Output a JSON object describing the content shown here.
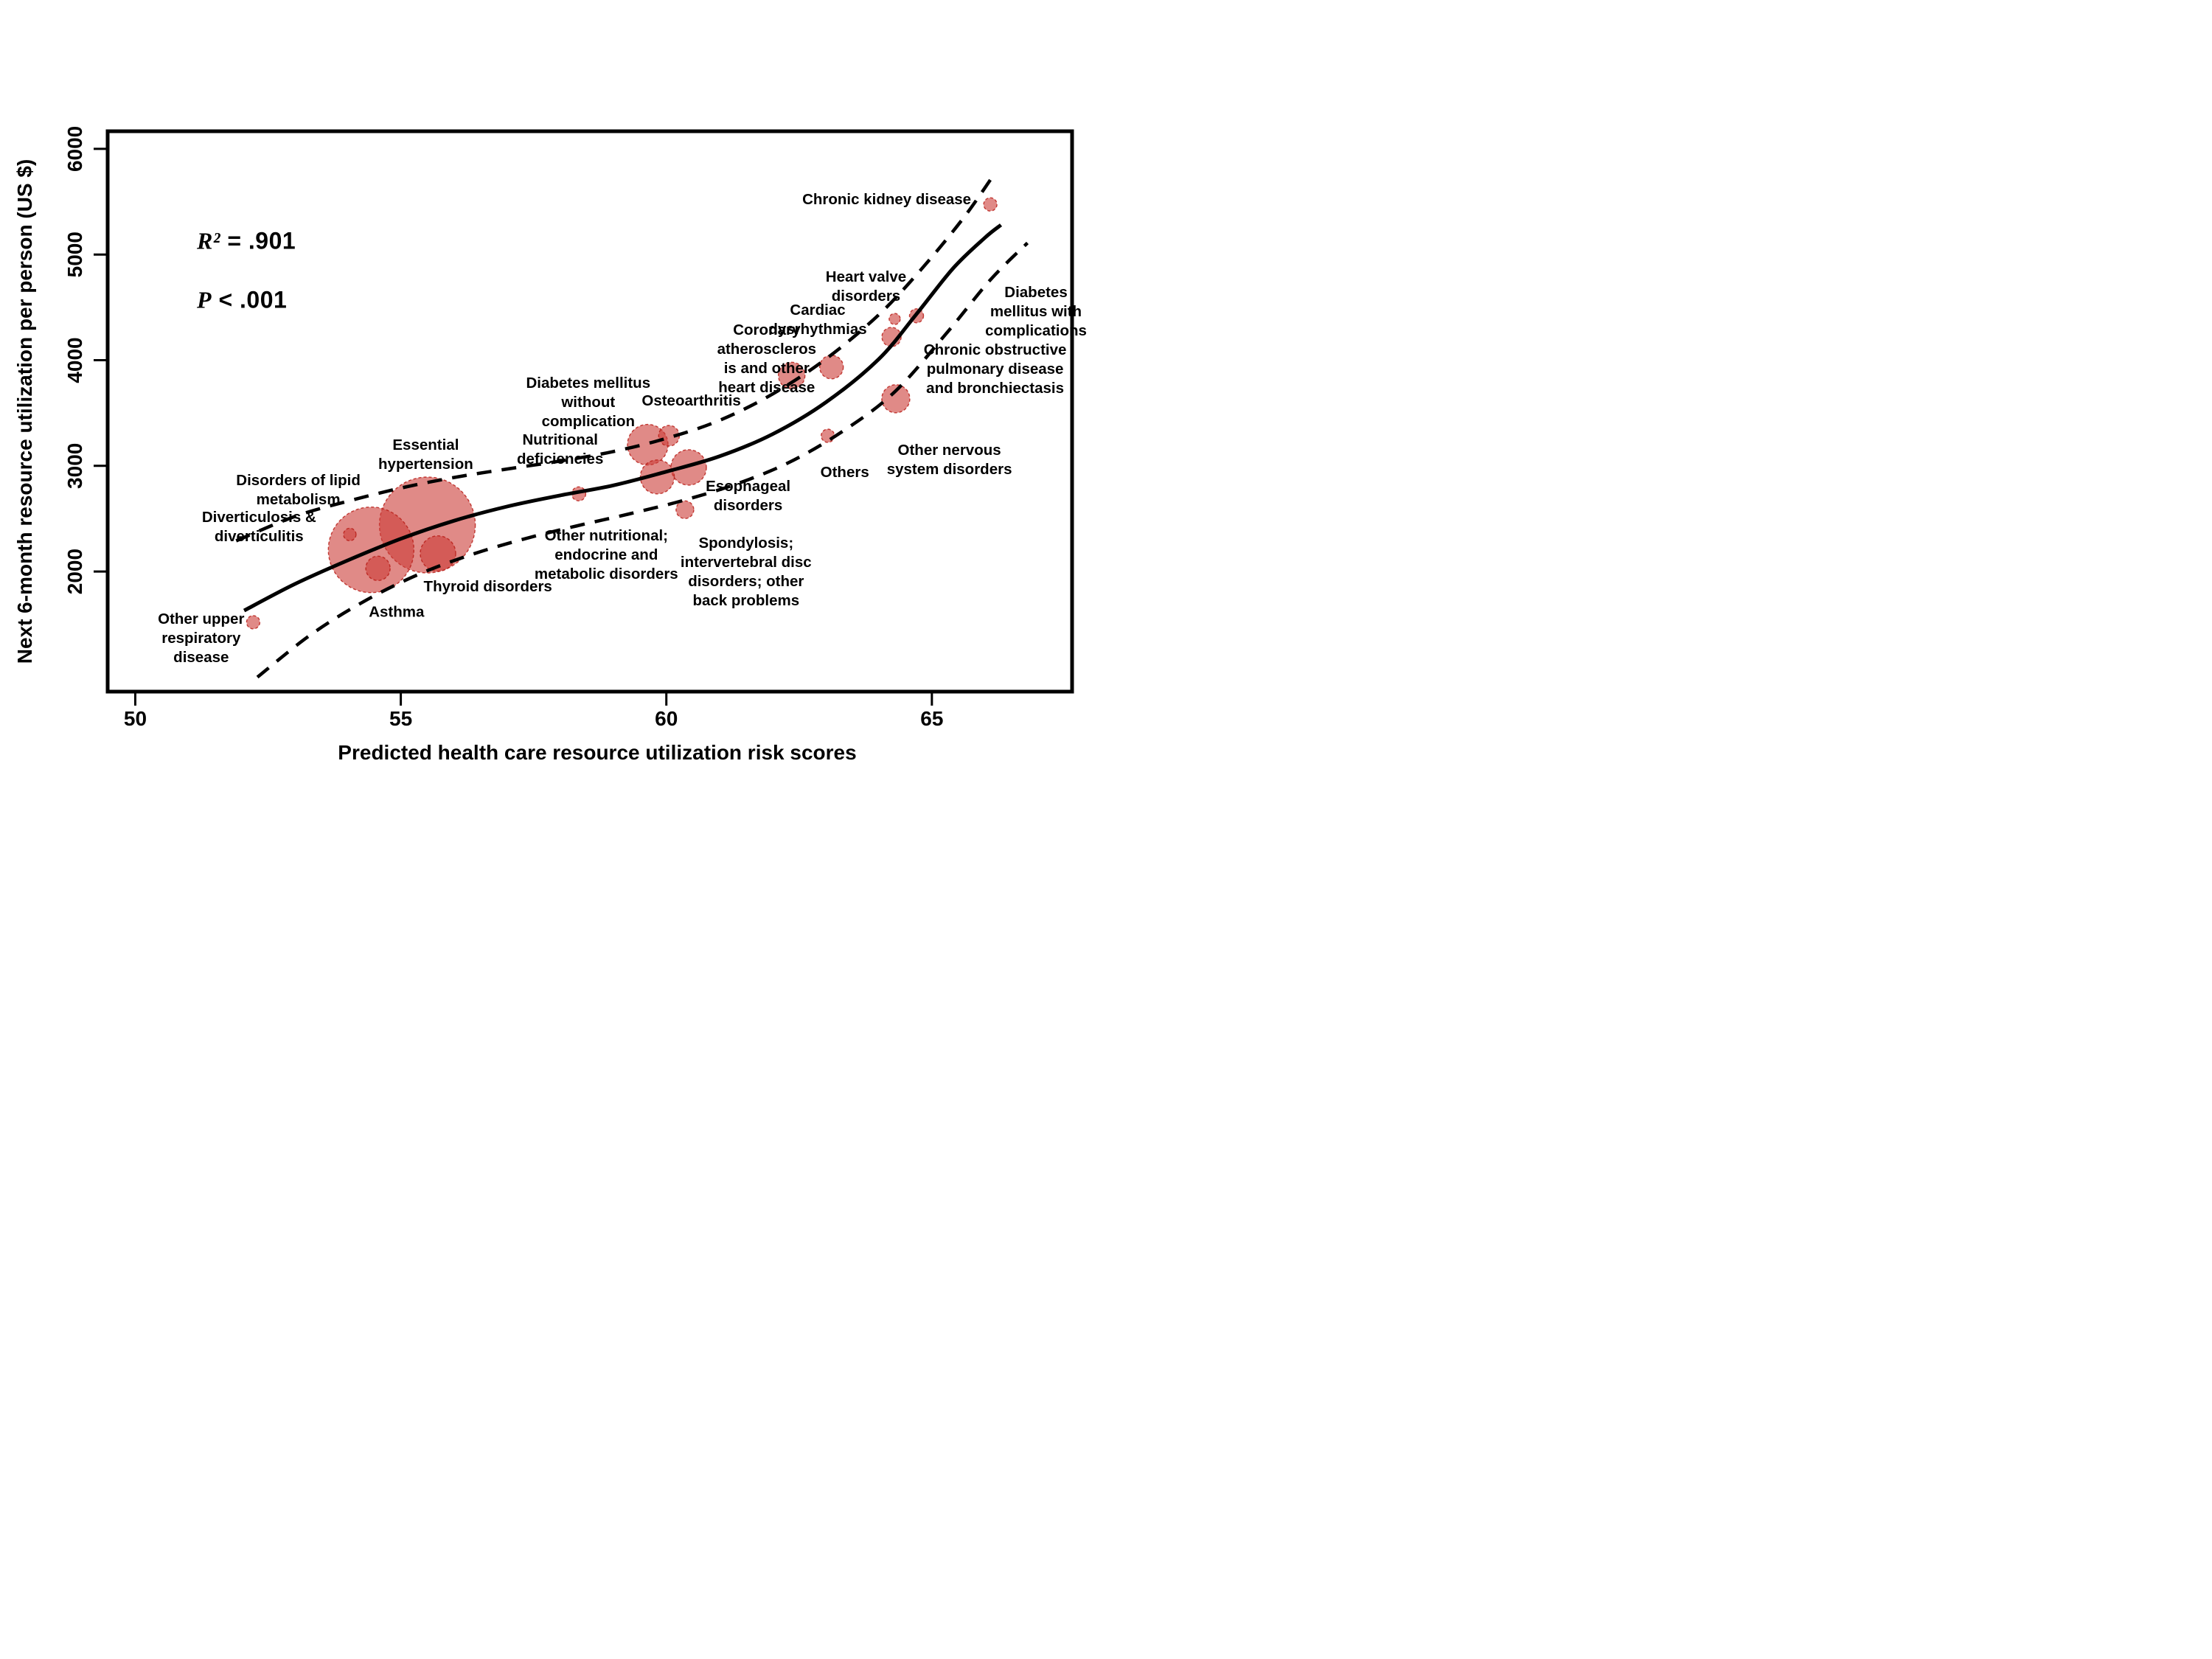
{
  "figure": {
    "annotations": {
      "r2": {
        "symbol": "R²",
        "value": "= .901"
      },
      "p": {
        "symbol": "P",
        "value": "< .001"
      }
    },
    "colors": {
      "bubble_fill": "rgba(204,60,55,0.6)",
      "bubble_stroke": "rgba(185,30,25,0.85)",
      "line": "#000000",
      "text": "#000000"
    }
  },
  "chart_data": {
    "type": "scatter",
    "title": "",
    "xlabel": "Predicted health care resource utilization risk scores",
    "ylabel": "Next 6-month resource utilization per person (US $)",
    "xlim": [
      49.48,
      67.64
    ],
    "ylim": [
      863,
      6167
    ],
    "x_ticks": [
      50,
      55,
      60,
      65
    ],
    "y_ticks": [
      2000,
      3000,
      4000,
      5000,
      6000
    ],
    "grid": false,
    "legend": "none",
    "regression_note": "bubble area reflects category size; solid line = fitted regression, dashed lines = confidence band",
    "series": [
      {
        "name": "Disease categories",
        "points": [
          {
            "name": "Other upper respiratory disease",
            "x": 52.22,
            "y": 1520,
            "r": 9,
            "label": {
              "lines": [
                "Other upper",
                "respiratory",
                "disease"
              ],
              "lx": 51.24,
              "ly": 1553
            }
          },
          {
            "name": "Diverticulosis & diverticulitis",
            "x": 54.04,
            "y": 2350,
            "r": 8.5,
            "label": {
              "lines": [
                "Diverticulosis &",
                "diverticulitis"
              ],
              "lx": 52.33,
              "ly": 2517
            }
          },
          {
            "name": "Disorders of lipid metabolism",
            "x": 54.44,
            "y": 2205,
            "r": 58,
            "label": {
              "lines": [
                "Disorders of lipid",
                "metabolism"
              ],
              "lx": 53.07,
              "ly": 2866
            }
          },
          {
            "name": "Essential hypertension",
            "x": 55.5,
            "y": 2440,
            "r": 65,
            "label": {
              "lines": [
                "Essential",
                "hypertension"
              ],
              "lx": 55.47,
              "ly": 3201
            }
          },
          {
            "name": "Asthma",
            "x": 54.57,
            "y": 2030,
            "r": 16.5,
            "label": {
              "lines": [
                "Asthma"
              ],
              "lx": 54.92,
              "ly": 1620
            }
          },
          {
            "name": "Thyroid disorders",
            "x": 55.7,
            "y": 2170,
            "r": 24,
            "label": {
              "lines": [
                "Thyroid disorders"
              ],
              "lx": 56.64,
              "ly": 1860
            }
          },
          {
            "name": "Nutritional deficiencies",
            "x": 58.35,
            "y": 2735,
            "r": 9.5,
            "label": {
              "lines": [
                "Nutritional",
                "deficiencies"
              ],
              "lx": 58.0,
              "ly": 3250
            }
          },
          {
            "name": "Diabetes mellitus without complication",
            "x": 59.65,
            "y": 3200,
            "r": 27.5,
            "label": {
              "lines": [
                "Diabetes mellitus",
                "without",
                "complication"
              ],
              "lx": 58.53,
              "ly": 3787
            }
          },
          {
            "name": "Osteoarthritis",
            "x": 60.05,
            "y": 3285,
            "r": 14,
            "label": {
              "lines": [
                "Osteoarthritis"
              ],
              "lx": 60.47,
              "ly": 3620
            }
          },
          {
            "name": "Other nutritional; endocrine and metabolic disorders",
            "x": 59.83,
            "y": 2895,
            "r": 23,
            "label": {
              "lines": [
                "Other nutritional;",
                "endocrine and",
                "metabolic disorders"
              ],
              "lx": 58.87,
              "ly": 2342
            }
          },
          {
            "name": "Esophageal disorders",
            "x": 60.42,
            "y": 2985,
            "r": 24,
            "label": {
              "lines": [
                "Esophageal",
                "disorders"
              ],
              "lx": 61.54,
              "ly": 2810
            }
          },
          {
            "name": "Spondylosis; intervertebral disc disorders; other back problems",
            "x": 60.35,
            "y": 2585,
            "r": 12,
            "label": {
              "lines": [
                "Spondylosis;",
                "intervertebral disc",
                "disorders; other",
                "back problems"
              ],
              "lx": 61.5,
              "ly": 2272
            }
          },
          {
            "name": "Others",
            "x": 63.04,
            "y": 3285,
            "r": 9,
            "label": {
              "lines": [
                "Others"
              ],
              "lx": 63.36,
              "ly": 2942
            }
          },
          {
            "name": "Coronary atherosclerosis and other heart disease",
            "x": 62.36,
            "y": 3855,
            "r": 18,
            "label": {
              "lines": [
                "Coronary",
                "atheroscleros",
                "is and other",
                "heart disease"
              ],
              "lx": 61.89,
              "ly": 4290
            }
          },
          {
            "name": "Cardiac dysrhythmias",
            "x": 63.11,
            "y": 3935,
            "r": 16,
            "label": {
              "lines": [
                "Cardiac",
                "dysrhythmias"
              ],
              "lx": 62.85,
              "ly": 4478
            }
          },
          {
            "name": "Heart valve disorders",
            "x": 64.3,
            "y": 4390,
            "r": 7.5,
            "label": {
              "lines": [
                "Heart valve",
                "disorders"
              ],
              "lx": 63.76,
              "ly": 4792
            }
          },
          {
            "name": "Diabetes mellitus with complications",
            "x": 64.71,
            "y": 4420,
            "r": 9.5,
            "label": {
              "lines": [
                "Diabetes",
                "mellitus with",
                "complications"
              ],
              "lx": 66.96,
              "ly": 4646
            }
          },
          {
            "name": "Chronic obstructive pulmonary disease and bronchiectasis",
            "x": 64.24,
            "y": 4220,
            "r": 13,
            "label": {
              "lines": [
                "Chronic obstructive",
                "pulmonary disease",
                "and bronchiectasis"
              ],
              "lx": 66.19,
              "ly": 4101
            }
          },
          {
            "name": "Other nervous system disorders",
            "x": 64.32,
            "y": 3635,
            "r": 19,
            "label": {
              "lines": [
                "Other nervous",
                "system disorders"
              ],
              "lx": 65.33,
              "ly": 3152
            }
          },
          {
            "name": "Chronic kidney disease",
            "x": 66.1,
            "y": 5475,
            "r": 9,
            "label": {
              "lines": [
                "Chronic kidney disease"
              ],
              "lx": 64.15,
              "ly": 5525
            }
          }
        ]
      }
    ],
    "regression": {
      "solid": [
        [
          52.05,
          1630
        ],
        [
          53,
          1880
        ],
        [
          54,
          2105
        ],
        [
          55,
          2310
        ],
        [
          56,
          2480
        ],
        [
          57,
          2615
        ],
        [
          58,
          2720
        ],
        [
          59,
          2815
        ],
        [
          60,
          2945
        ],
        [
          61,
          3090
        ],
        [
          62,
          3300
        ],
        [
          63,
          3600
        ],
        [
          64,
          4010
        ],
        [
          64.7,
          4430
        ],
        [
          65.4,
          4870
        ],
        [
          66,
          5160
        ],
        [
          66.3,
          5280
        ]
      ],
      "upper_dashed": [
        [
          51.9,
          2290
        ],
        [
          53,
          2520
        ],
        [
          54,
          2665
        ],
        [
          55,
          2790
        ],
        [
          56,
          2890
        ],
        [
          57,
          2970
        ],
        [
          58,
          3045
        ],
        [
          59,
          3135
        ],
        [
          60,
          3260
        ],
        [
          61,
          3430
        ],
        [
          62,
          3680
        ],
        [
          63,
          4010
        ],
        [
          64,
          4430
        ],
        [
          64.8,
          4860
        ],
        [
          65.6,
          5350
        ],
        [
          66.2,
          5780
        ]
      ],
      "lower_dashed": [
        [
          52.3,
          1000
        ],
        [
          53.3,
          1400
        ],
        [
          54.3,
          1715
        ],
        [
          55.3,
          1965
        ],
        [
          56.3,
          2155
        ],
        [
          57.3,
          2305
        ],
        [
          58.3,
          2430
        ],
        [
          59.3,
          2545
        ],
        [
          60.3,
          2670
        ],
        [
          61.3,
          2825
        ],
        [
          62.3,
          3030
        ],
        [
          63.3,
          3320
        ],
        [
          64.3,
          3700
        ],
        [
          65.3,
          4270
        ],
        [
          66.1,
          4760
        ],
        [
          66.8,
          5110
        ]
      ]
    }
  }
}
